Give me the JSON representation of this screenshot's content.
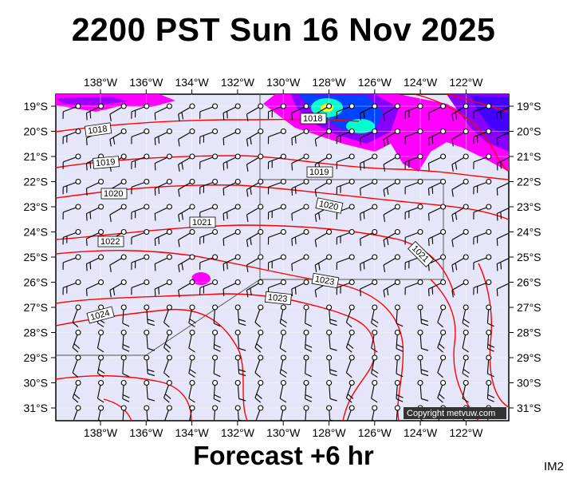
{
  "header": {
    "title": "2200 PST Sun 16 Nov 2025"
  },
  "footer": {
    "forecast": "Forecast +6 hr",
    "code": "IM2"
  },
  "copyright": "Copyright metvuw.com",
  "map": {
    "lon_labels": [
      "138°W",
      "136°W",
      "134°W",
      "132°W",
      "130°W",
      "128°W",
      "126°W",
      "124°W",
      "122°W"
    ],
    "lat_labels": [
      "19°S",
      "20°S",
      "21°S",
      "22°S",
      "23°S",
      "24°S",
      "25°S",
      "26°S",
      "27°S",
      "28°S",
      "29°S",
      "30°S",
      "31°S"
    ],
    "isobar_labels": [
      "1018",
      "1018",
      "1019",
      "1019",
      "1020",
      "1020",
      "1021",
      "1021",
      "1022",
      "1023",
      "1023",
      "1024"
    ],
    "colors": {
      "ocean": "#e6e6fa",
      "isobar": "#ff0000",
      "rain_light": "#ff00ff",
      "rain_mid": "#8800ff",
      "rain_heavy": "#0044ff",
      "rain_peak": "#00ffcc"
    }
  }
}
